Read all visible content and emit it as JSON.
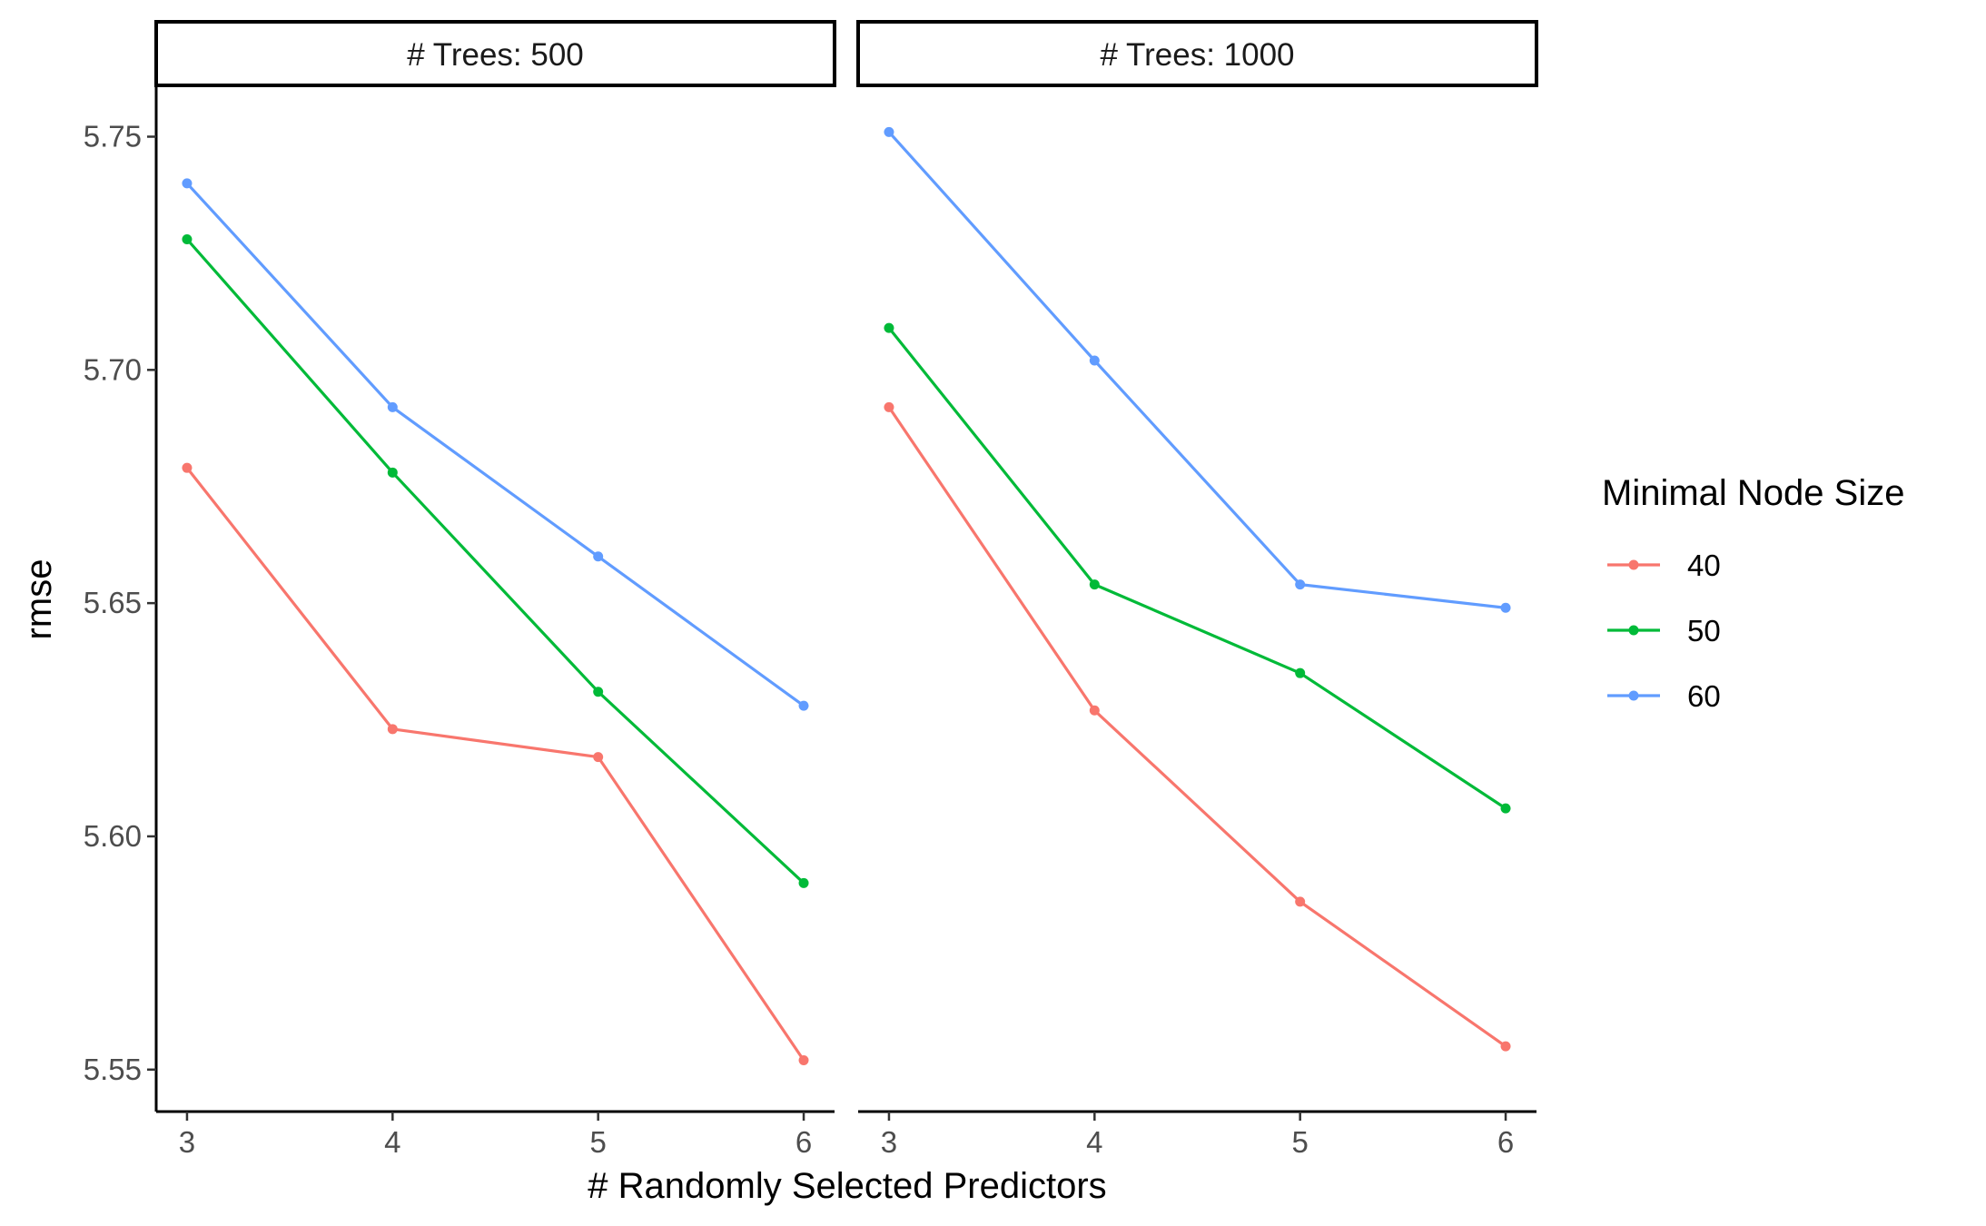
{
  "chart_data": {
    "type": "line",
    "xlabel": "# Randomly Selected Predictors",
    "ylabel": "rmse",
    "x": [
      3,
      4,
      5,
      6
    ],
    "x_ticks": [
      "3",
      "4",
      "5",
      "6"
    ],
    "xlim": [
      2.85,
      6.15
    ],
    "ylim": [
      5.541,
      5.761
    ],
    "y_ticks": [
      5.55,
      5.6,
      5.65,
      5.7,
      5.75
    ],
    "y_tick_labels": [
      "5.55",
      "5.60",
      "5.65",
      "5.70",
      "5.75"
    ],
    "grid": false,
    "legend": {
      "title": "Minimal Node Size",
      "placement": "right",
      "entries": [
        {
          "label": "40",
          "color": "#F8766D"
        },
        {
          "label": "50",
          "color": "#00BA38"
        },
        {
          "label": "60",
          "color": "#619CFF"
        }
      ]
    },
    "panels": [
      {
        "label": "# Trees: 500",
        "series": [
          {
            "name": "40",
            "color": "#F8766D",
            "values": [
              5.679,
              5.623,
              5.617,
              5.552
            ]
          },
          {
            "name": "50",
            "color": "#00BA38",
            "values": [
              5.728,
              5.678,
              5.631,
              5.59
            ]
          },
          {
            "name": "60",
            "color": "#619CFF",
            "values": [
              5.74,
              5.692,
              5.66,
              5.628
            ]
          }
        ]
      },
      {
        "label": "# Trees: 1000",
        "series": [
          {
            "name": "40",
            "color": "#F8766D",
            "values": [
              5.692,
              5.627,
              5.586,
              5.555
            ]
          },
          {
            "name": "50",
            "color": "#00BA38",
            "values": [
              5.709,
              5.654,
              5.635,
              5.606
            ]
          },
          {
            "name": "60",
            "color": "#619CFF",
            "values": [
              5.751,
              5.702,
              5.654,
              5.649
            ]
          }
        ]
      }
    ]
  }
}
